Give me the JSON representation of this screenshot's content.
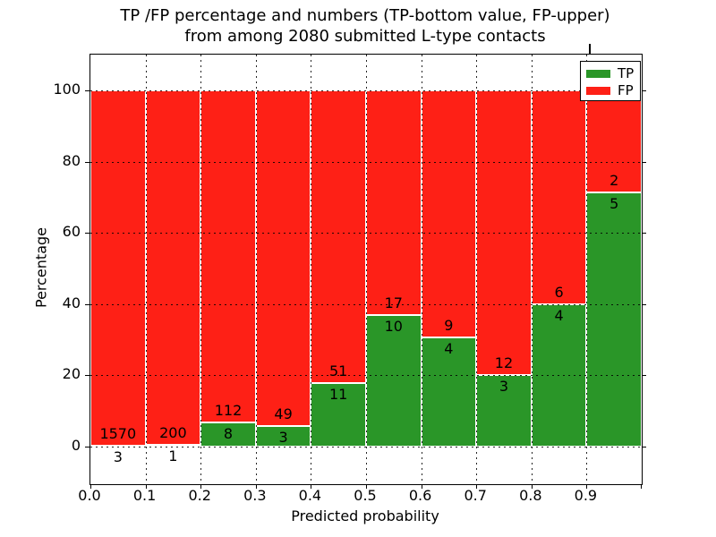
{
  "title": {
    "line1": "TP /FP percentage and numbers (TP-bottom value, FP-upper)",
    "line2": "from among 2080 submitted L-type contacts"
  },
  "axes": {
    "xlabel": "Predicted probability",
    "ylabel": "Percentage",
    "xtick_labels": [
      "0.0",
      "0.1",
      "0.2",
      "0.3",
      "0.4",
      "0.5",
      "0.6",
      "0.7",
      "0.8",
      "0.9"
    ],
    "ytick_labels": [
      "0",
      "20",
      "40",
      "60",
      "80",
      "100"
    ],
    "ytick_values": [
      0,
      20,
      40,
      60,
      80,
      100
    ]
  },
  "legend": {
    "items": [
      {
        "label": "TP",
        "color": "#2a9628"
      },
      {
        "label": "FP",
        "color": "#fe2016"
      }
    ]
  },
  "colors": {
    "tp_green": "#2a9628",
    "fp_red": "#fe2016",
    "bar_edge": "#ffffff",
    "grid": "#000000",
    "background": "#ffffff"
  },
  "chart_data": {
    "type": "bar",
    "stacked": true,
    "note": "each bin normalized to 100%; numeric labels show raw counts (TP bottom, FP upper)",
    "title": "TP /FP percentage and numbers (TP-bottom value, FP-upper) from among 2080 submitted L-type contacts",
    "xlabel": "Predicted probability",
    "ylabel": "Percentage",
    "total_contacts": 2080,
    "bin_starts": [
      0.0,
      0.1,
      0.2,
      0.3,
      0.4,
      0.5,
      0.6,
      0.7,
      0.8,
      0.9
    ],
    "bin_width": 0.1,
    "series": [
      {
        "name": "TP",
        "counts": [
          3,
          1,
          8,
          3,
          11,
          10,
          4,
          3,
          4,
          5
        ]
      },
      {
        "name": "FP",
        "counts": [
          1570,
          200,
          112,
          49,
          51,
          17,
          9,
          12,
          6,
          2
        ]
      }
    ],
    "tp_percent_per_bin": [
      0.19,
      0.5,
      6.67,
      5.77,
      17.74,
      37.04,
      30.77,
      20.0,
      40.0,
      71.43
    ],
    "yticks": [
      0,
      20,
      40,
      60,
      80,
      100
    ],
    "ylim_approx": [
      -11,
      110
    ],
    "grid": "dotted, drawn above bars",
    "legend_position": "upper right"
  }
}
